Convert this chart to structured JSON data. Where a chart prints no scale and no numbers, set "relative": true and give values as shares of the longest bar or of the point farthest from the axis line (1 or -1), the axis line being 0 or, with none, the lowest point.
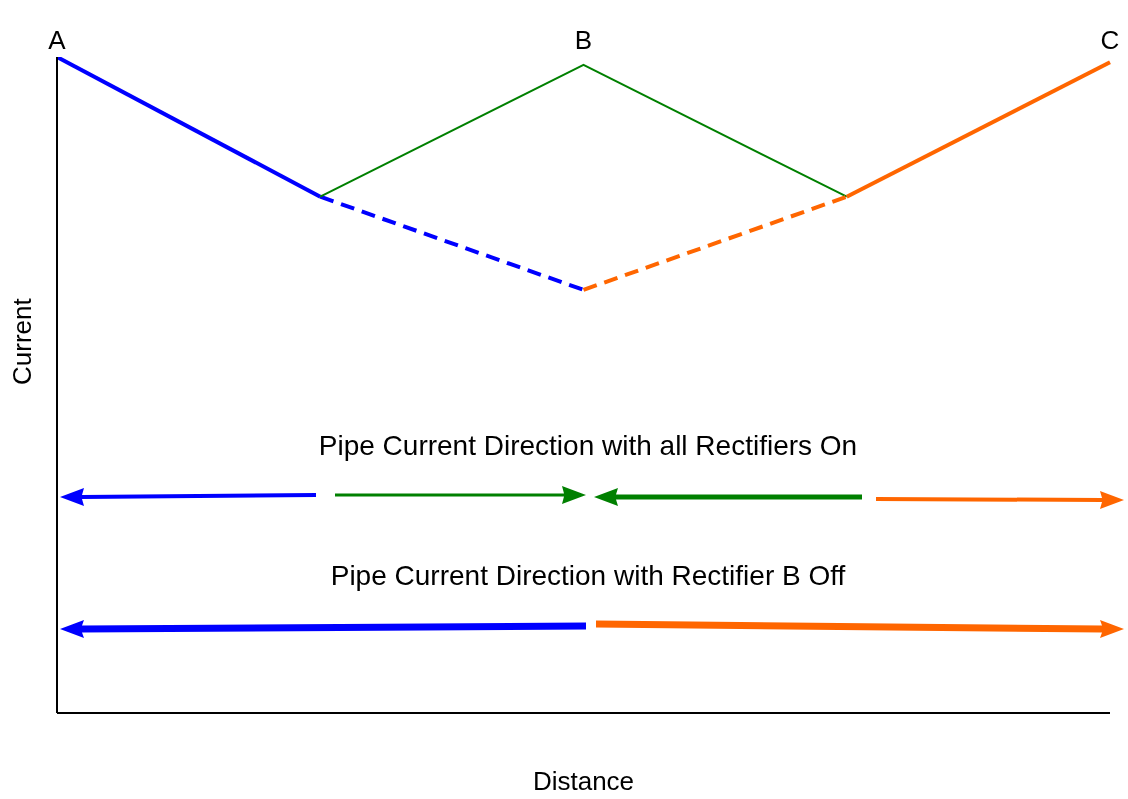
{
  "chart_data": {
    "type": "line",
    "relative": true,
    "xlabel": "Distance",
    "ylabel": "Current",
    "categories": [
      "A",
      null,
      "B",
      null,
      "C"
    ],
    "marker": "none",
    "series": [
      {
        "color": "#0000ff",
        "line_style": "solid",
        "values": [
          1,
          0.787,
          null,
          null,
          null
        ]
      },
      {
        "color": "#0000ff",
        "line_style": "dashed",
        "values": [
          null,
          0.787,
          0.645,
          null,
          null
        ]
      },
      {
        "color": "#008000",
        "line_style": "solid",
        "values": [
          null,
          0.787,
          0.988,
          0.787,
          null
        ]
      },
      {
        "color": "#ff6600",
        "line_style": "dashed",
        "values": [
          null,
          null,
          0.645,
          0.787,
          null
        ]
      },
      {
        "color": "#ff6600",
        "line_style": "solid",
        "values": [
          null,
          null,
          null,
          0.787,
          0.992
        ]
      }
    ],
    "annotations": [
      "Pipe Current Direction with all Rectifiers On",
      "Pipe Current Direction with Rectifier B Off"
    ]
  }
}
